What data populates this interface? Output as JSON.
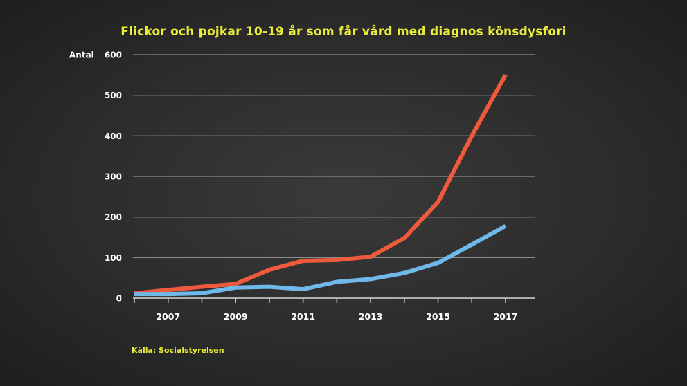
{
  "chart_data": {
    "type": "line",
    "title": "Flickor och pojkar 10-19 år som får vård med diagnos könsdysfori",
    "ylabel": "Antal",
    "xlabel": "",
    "x": [
      2006,
      2007,
      2008,
      2009,
      2010,
      2011,
      2012,
      2013,
      2014,
      2015,
      2016,
      2017
    ],
    "xticks": [
      2007,
      2009,
      2011,
      2013,
      2015,
      2017
    ],
    "ylim": [
      0,
      600
    ],
    "yticks": [
      0,
      100,
      200,
      300,
      400,
      500,
      600
    ],
    "grid": true,
    "series": [
      {
        "color": "#f05a3c",
        "values": [
          12,
          20,
          28,
          35,
          70,
          92,
          94,
          102,
          148,
          237,
          400,
          550
        ]
      },
      {
        "color": "#6fb8ea",
        "values": [
          10,
          10,
          12,
          26,
          28,
          22,
          40,
          47,
          62,
          87,
          132,
          178
        ]
      }
    ]
  },
  "source": "Källa: Socialstyrelsen",
  "colors": {
    "background": "#2e2e2e",
    "text": "#ffffff",
    "accent": "#ecec3a",
    "grid": "#8c8c8c"
  }
}
